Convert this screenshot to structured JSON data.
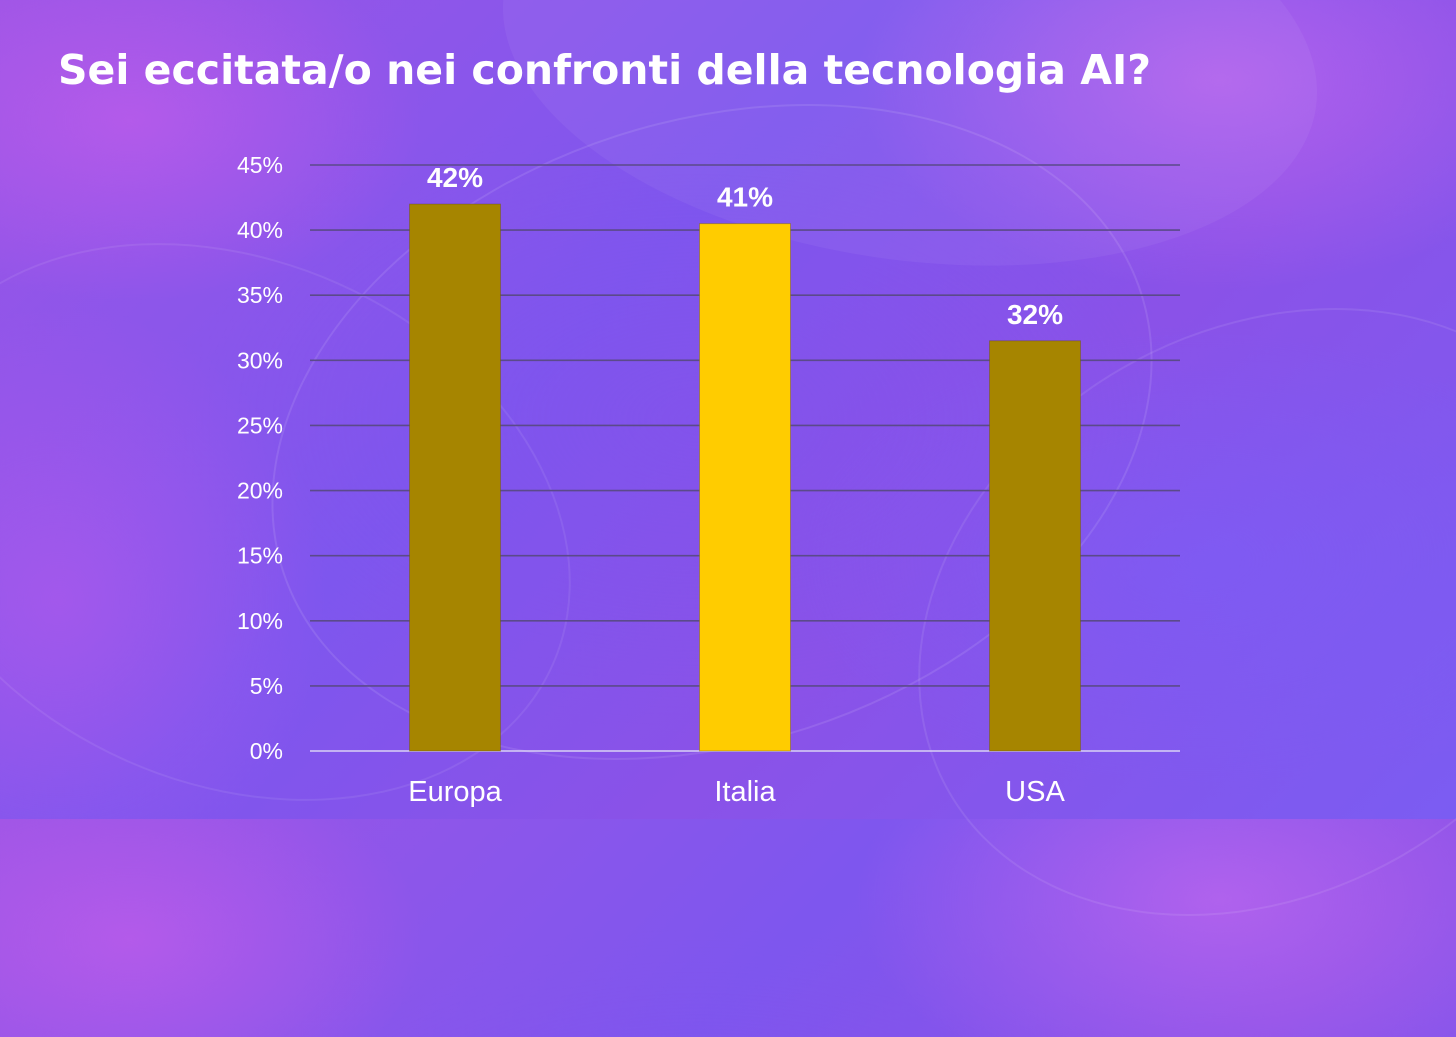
{
  "title": "Sei eccitata/o nei confronti della tecnologia AI?",
  "chart_data": {
    "type": "bar",
    "title": "Sei eccitata/o nei confronti della tecnologia AI?",
    "categories": [
      "Europa",
      "Italia",
      "USA"
    ],
    "values": [
      42,
      40.5,
      31.5
    ],
    "data_labels": [
      "42%",
      "41%",
      "32%"
    ],
    "bar_colors": [
      "#a68500",
      "#ffcc00",
      "#a68500"
    ],
    "ylim": [
      0,
      45
    ],
    "yticks": [
      0,
      5,
      10,
      15,
      20,
      25,
      30,
      35,
      40,
      45
    ],
    "ytick_labels": [
      "0%",
      "5%",
      "10%",
      "15%",
      "20%",
      "25%",
      "30%",
      "35%",
      "40%",
      "45%"
    ],
    "xlabel": "",
    "ylabel": "",
    "grid": true,
    "legend": "none"
  }
}
